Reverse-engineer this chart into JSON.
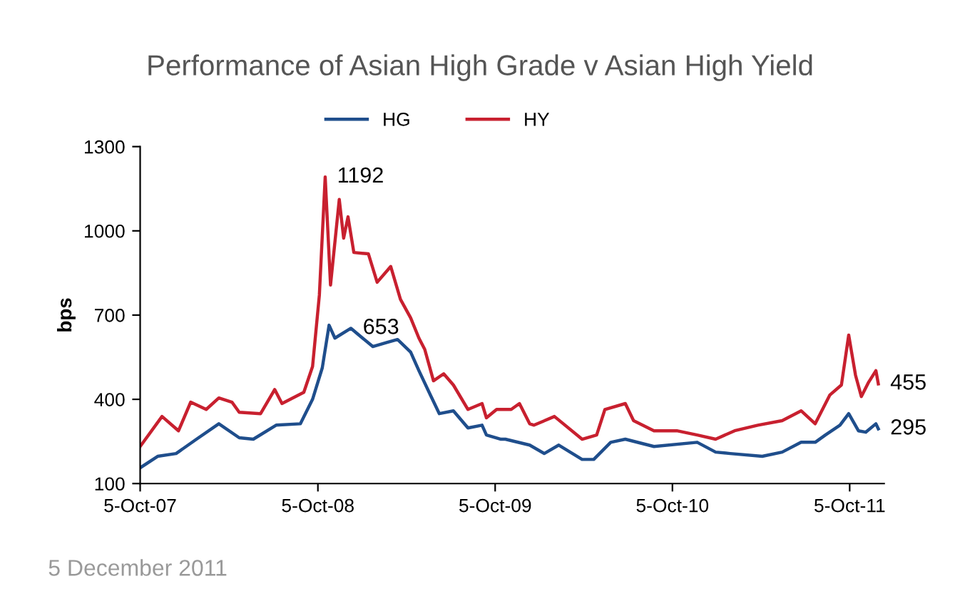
{
  "chart_data": {
    "type": "line",
    "title": "Performance of Asian High Grade v Asian High Yield",
    "ylabel": "bps",
    "ylim": [
      100,
      1300
    ],
    "yticks": [
      100,
      400,
      700,
      1000,
      1300
    ],
    "xlim": [
      "2007-10-05",
      "2011-12-15"
    ],
    "xticks": [
      {
        "value": "2007-10-05",
        "label": "5-Oct-07"
      },
      {
        "value": "2008-10-05",
        "label": "5-Oct-08"
      },
      {
        "value": "2009-10-05",
        "label": "5-Oct-09"
      },
      {
        "value": "2010-10-05",
        "label": "5-Oct-10"
      },
      {
        "value": "2011-10-05",
        "label": "5-Oct-11"
      }
    ],
    "grid": false,
    "legend": "top",
    "marker": "none",
    "line_style": "solid",
    "series": [
      {
        "name": "HG",
        "color": "#1f4e8c",
        "x": [
          "2007-10-05",
          "2007-11-10",
          "2007-12-18",
          "2008-01-29",
          "2008-03-15",
          "2008-04-26",
          "2008-05-25",
          "2008-07-11",
          "2008-08-30",
          "2008-09-24",
          "2008-10-14",
          "2008-10-28",
          "2008-11-09",
          "2008-12-12",
          "2009-01-05",
          "2009-01-26",
          "2009-02-25",
          "2009-03-18",
          "2009-04-14",
          "2009-05-01",
          "2009-05-22",
          "2009-06-12",
          "2009-07-11",
          "2009-08-10",
          "2009-09-08",
          "2009-09-17",
          "2009-10-17",
          "2009-10-26",
          "2009-12-15",
          "2010-01-14",
          "2010-02-13",
          "2010-04-02",
          "2010-04-26",
          "2010-05-31",
          "2010-06-30",
          "2010-08-28",
          "2010-11-25",
          "2011-01-02",
          "2011-02-01",
          "2011-04-08",
          "2011-05-19",
          "2011-06-27",
          "2011-07-26",
          "2011-08-16",
          "2011-09-15",
          "2011-10-03",
          "2011-10-23",
          "2011-11-07",
          "2011-11-28",
          "2011-12-03"
        ],
        "values": [
          156,
          197,
          207,
          258,
          313,
          263,
          258,
          308,
          313,
          400,
          512,
          664,
          618,
          653,
          618,
          588,
          603,
          613,
          568,
          502,
          425,
          349,
          359,
          298,
          308,
          273,
          258,
          258,
          237,
          207,
          237,
          186,
          186,
          247,
          258,
          232,
          247,
          212,
          207,
          197,
          212,
          247,
          247,
          273,
          308,
          349,
          288,
          283,
          313,
          295
        ]
      },
      {
        "name": "HY",
        "color": "#c8202f",
        "x": [
          "2007-10-05",
          "2007-11-19",
          "2007-12-23",
          "2008-01-17",
          "2008-02-18",
          "2008-03-15",
          "2008-04-11",
          "2008-04-26",
          "2008-06-09",
          "2008-07-08",
          "2008-07-23",
          "2008-09-06",
          "2008-09-24",
          "2008-10-08",
          "2008-10-20",
          "2008-10-31",
          "2008-11-18",
          "2008-11-27",
          "2008-12-06",
          "2008-12-18",
          "2009-01-17",
          "2009-02-04",
          "2009-03-04",
          "2009-03-24",
          "2009-04-14",
          "2009-05-01",
          "2009-05-13",
          "2009-05-31",
          "2009-06-21",
          "2009-07-11",
          "2009-08-10",
          "2009-09-08",
          "2009-09-17",
          "2009-10-08",
          "2009-10-26",
          "2009-11-07",
          "2009-11-24",
          "2009-12-15",
          "2009-12-24",
          "2010-02-04",
          "2010-04-02",
          "2010-05-02",
          "2010-05-19",
          "2010-06-30",
          "2010-07-17",
          "2010-08-28",
          "2010-10-14",
          "2010-11-25",
          "2011-01-02",
          "2011-02-10",
          "2011-03-30",
          "2011-05-19",
          "2011-06-27",
          "2011-07-26",
          "2011-08-25",
          "2011-09-18",
          "2011-10-03",
          "2011-10-17",
          "2011-10-29",
          "2011-11-13",
          "2011-11-28",
          "2011-12-03"
        ],
        "values": [
          232,
          339,
          288,
          390,
          364,
          405,
          390,
          354,
          349,
          435,
          385,
          425,
          517,
          771,
          1192,
          807,
          1112,
          974,
          1050,
          923,
          918,
          817,
          873,
          756,
          690,
          618,
          578,
          466,
          491,
          451,
          364,
          385,
          334,
          364,
          364,
          364,
          385,
          313,
          308,
          339,
          258,
          273,
          364,
          385,
          324,
          288,
          288,
          273,
          258,
          288,
          308,
          324,
          359,
          313,
          415,
          451,
          629,
          486,
          410,
          461,
          502,
          455
        ]
      }
    ],
    "annotations": [
      {
        "text": "1192",
        "x": "2008-10-20",
        "y": 1192
      },
      {
        "text": "653",
        "x": "2008-12-12",
        "y": 653
      },
      {
        "text": "455",
        "x": "2011-12-03",
        "y": 455
      },
      {
        "text": "295",
        "x": "2011-12-03",
        "y": 295
      },
      "5 December 2011"
    ]
  }
}
